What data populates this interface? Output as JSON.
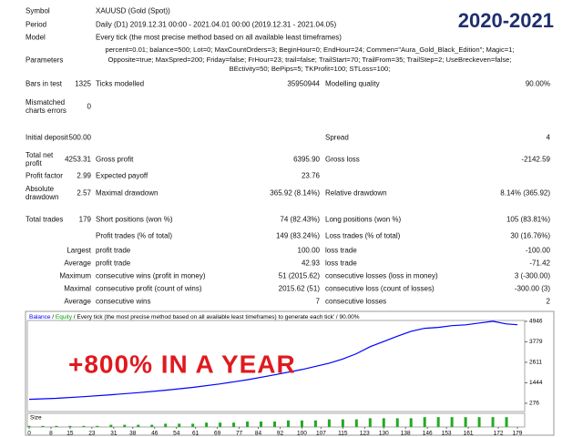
{
  "badge": "2020-2021",
  "caption": "+800% IN A YEAR",
  "report": {
    "info": [
      {
        "label": "Symbol",
        "value": "XAUUSD (Gold (Spot))"
      },
      {
        "label": "Period",
        "value": "Daily (D1) 2019.12.31 00:00 - 2021.04.01 00:00 (2019.12.31 - 2021.04.05)"
      },
      {
        "label": "Model",
        "value": "Every tick (the most precise method based on all available least timeframes)"
      }
    ],
    "parameters": {
      "label": "Parameters",
      "value": "percent=0.01; balance=500; Lot=0; MaxCountOrders=3; BeginHour=0; EndHour=24; Commen=\"Aura_Gold_Black_Edition\"; Magic=1; Opposite=true; MaxSpred=200; Friday=false; FrHour=23; trail=false; TrailStart=70; TrailFrom=35; TrailStep=2; UseBreckeven=false; BEctivity=50; BePips=5; TKProfit=100; STLoss=100;"
    },
    "stats": [
      {
        "label": "Bars in test",
        "value": "1325",
        "label2": "Ticks modelled",
        "value2": "35950944",
        "label3": "Modelling quality",
        "value3": "90.00%"
      },
      {
        "label": "Mismatched charts errors",
        "value": "0"
      },
      {
        "label": "Initial deposit",
        "value": "500.00",
        "label3": "Spread",
        "value3": "4"
      },
      {
        "label": "Total net profit",
        "value": "4253.31",
        "label2": "Gross profit",
        "value2": "6395.90",
        "label3": "Gross loss",
        "value3": "-2142.59"
      },
      {
        "label": "Profit factor",
        "value": "2.99",
        "label2": "Expected payoff",
        "value2": "23.76"
      },
      {
        "label": "Absolute drawdown",
        "value": "2.57",
        "label2": "Maximal drawdown",
        "value2": "365.92 (8.14%)",
        "label3": "Relative drawdown",
        "value3": "8.14% (365.92)"
      },
      {
        "label": "Total trades",
        "value": "179",
        "label2": "Short positions (won %)",
        "value2": "74 (82.43%)",
        "label3": "Long positions (won %)",
        "value3": "105 (83.81%)"
      },
      {
        "label2": "Profit trades (% of total)",
        "value2": "149 (83.24%)",
        "label3": "Loss trades (% of total)",
        "value3": "30 (16.76%)"
      },
      {
        "label": "Largest",
        "label2": "profit trade",
        "value2": "100.00",
        "label3": "loss trade",
        "value3": "-100.00"
      },
      {
        "label": "Average",
        "label2": "profit trade",
        "value2": "42.93",
        "label3": "loss trade",
        "value3": "-71.42"
      },
      {
        "label": "Maximum",
        "label2": "consecutive wins (profit in money)",
        "value2": "51 (2015.62)",
        "label3": "consecutive losses (loss in money)",
        "value3": "3 (-300.00)"
      },
      {
        "label": "Maximal",
        "label2": "consecutive profit (count of wins)",
        "value2": "2015.62 (51)",
        "label3": "consecutive loss (count of losses)",
        "value3": "-300.00 (3)"
      },
      {
        "label": "Average",
        "label2": "consecutive wins",
        "value2": "7",
        "label3": "consecutive losses",
        "value3": "2"
      }
    ]
  },
  "balance_chart": {
    "type": "line",
    "separator": "/",
    "header_text": "Every tick (the most precise method based on all available least timeframes) to generate each tick' / 90.00%",
    "equity_legend": {
      "name": "Equity",
      "color": "#00a000"
    },
    "x": [
      0,
      10,
      20,
      30,
      40,
      50,
      60,
      70,
      80,
      90,
      100,
      110,
      115,
      120,
      125,
      130,
      135,
      140,
      145,
      150,
      155,
      160,
      165,
      170,
      175,
      179
    ],
    "series": [
      {
        "name": "Balance",
        "color": "#0000ff",
        "values": [
          500,
          560,
          650,
          760,
          880,
          1020,
          1180,
          1380,
          1620,
          1900,
          2200,
          2560,
          2800,
          3100,
          3500,
          3800,
          4100,
          4380,
          4550,
          4600,
          4700,
          4750,
          4850,
          4950,
          4800,
          4753.31
        ]
      }
    ],
    "xlim": [
      0,
      179
    ],
    "ylim": [
      -90,
      5360
    ],
    "yticks": [
      276,
      1444,
      2611,
      3779,
      4946
    ],
    "xticks": [
      0,
      8,
      15,
      23,
      31,
      38,
      46,
      54,
      61,
      69,
      77,
      84,
      92,
      100,
      107,
      115,
      123,
      130,
      138,
      146,
      153,
      161,
      172,
      179
    ]
  },
  "size_chart": {
    "type": "bar",
    "label": "Size",
    "color": "#22aa22",
    "ylim": [
      0,
      0.1
    ],
    "x": [
      0,
      5,
      10,
      15,
      20,
      25,
      30,
      35,
      40,
      45,
      50,
      55,
      60,
      65,
      70,
      75,
      80,
      85,
      90,
      95,
      100,
      105,
      110,
      115,
      120,
      125,
      130,
      135,
      140,
      145,
      150,
      155,
      160,
      165,
      170,
      175
    ],
    "values": [
      0.01,
      0.01,
      0.01,
      0.01,
      0.01,
      0.01,
      0.02,
      0.02,
      0.02,
      0.02,
      0.03,
      0.03,
      0.03,
      0.04,
      0.04,
      0.04,
      0.05,
      0.05,
      0.05,
      0.06,
      0.06,
      0.06,
      0.07,
      0.07,
      0.07,
      0.08,
      0.08,
      0.08,
      0.08,
      0.09,
      0.09,
      0.09,
      0.09,
      0.09,
      0.09,
      0.09
    ]
  }
}
